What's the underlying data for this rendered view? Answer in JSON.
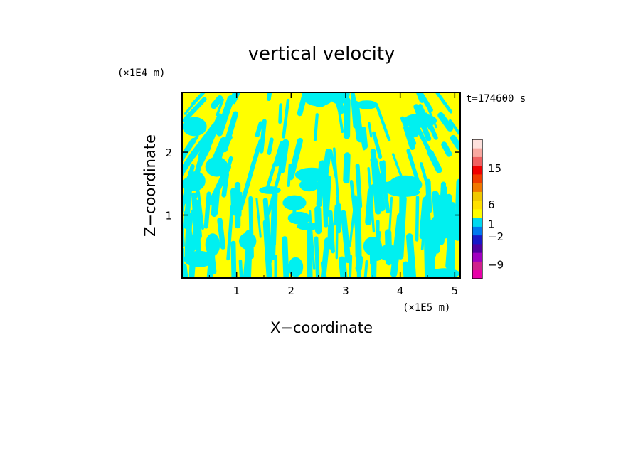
{
  "chart_data": {
    "type": "heatmap",
    "title": "vertical velocity",
    "xlabel": "X−coordinate",
    "ylabel": "Z−coordinate",
    "x_scale_label": "(×1E5 m)",
    "y_scale_label": "(×1E4 m)",
    "time_label": "t=174600 s",
    "xlim": [
      0,
      5.1
    ],
    "ylim": [
      0,
      2.95
    ],
    "x_ticks": [
      1,
      2,
      3,
      4,
      5
    ],
    "y_ticks": [
      1,
      2
    ],
    "fill_colors": {
      "positive": "#ffff00",
      "negative": "#00f0f0"
    },
    "colorbar": {
      "tick_labels": [
        "15",
        "6",
        "1",
        "−2",
        "−9"
      ],
      "tick_values": [
        15,
        6,
        1,
        -2,
        -9
      ],
      "colors": [
        "#e800a8",
        "#d0208c",
        "#a000c0",
        "#5000a0",
        "#1818c8",
        "#0078f0",
        "#00d8f0",
        "#ffff00",
        "#ffe000",
        "#f0c800",
        "#f07800",
        "#f03c00",
        "#f00000",
        "#f06060",
        "#f8a8a0",
        "#fde0dc"
      ]
    }
  }
}
